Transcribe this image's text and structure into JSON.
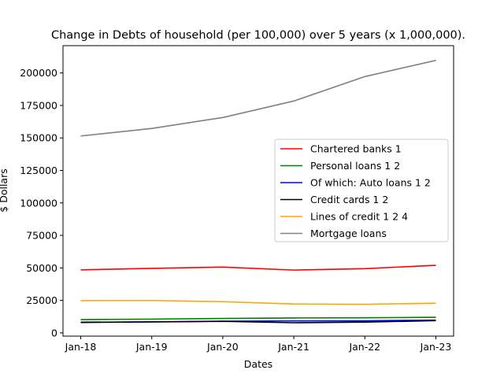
{
  "chart_data": {
    "type": "line",
    "title": "Change in Debts of household (per 100,000) over 5 years (x 1,000,000).",
    "xlabel": "Dates",
    "ylabel": "$ Dollars",
    "categories": [
      "Jan-18",
      "Jan-19",
      "Jan-20",
      "Jan-21",
      "Jan-22",
      "Jan-23"
    ],
    "ylim": [
      -2500,
      221000
    ],
    "yticks": [
      0,
      25000,
      50000,
      75000,
      100000,
      125000,
      150000,
      175000,
      200000
    ],
    "grid": false,
    "legend_position": "center-right",
    "series": [
      {
        "name": "Chartered banks 1",
        "color": "#ff0000",
        "values": [
          48500,
          49600,
          50600,
          48300,
          49400,
          52000
        ]
      },
      {
        "name": "Personal loans 1 2",
        "color": "#008000",
        "values": [
          10200,
          10600,
          11100,
          11500,
          11600,
          12000
        ]
      },
      {
        "name": "Of which: Auto loans 1 2",
        "color": "#0000ff",
        "values": [
          8000,
          8500,
          9000,
          9200,
          9300,
          9800
        ]
      },
      {
        "name": "Credit cards 1 2",
        "color": "#000000",
        "values": [
          8200,
          8400,
          8900,
          7800,
          8300,
          9400
        ]
      },
      {
        "name": "Lines of credit 1 2 4",
        "color": "#ffa500",
        "values": [
          24800,
          24900,
          24000,
          22200,
          22000,
          22800
        ]
      },
      {
        "name": "Mortgage loans",
        "color": "#808080",
        "values": [
          151500,
          157300,
          165700,
          178400,
          197200,
          209700
        ]
      }
    ]
  }
}
